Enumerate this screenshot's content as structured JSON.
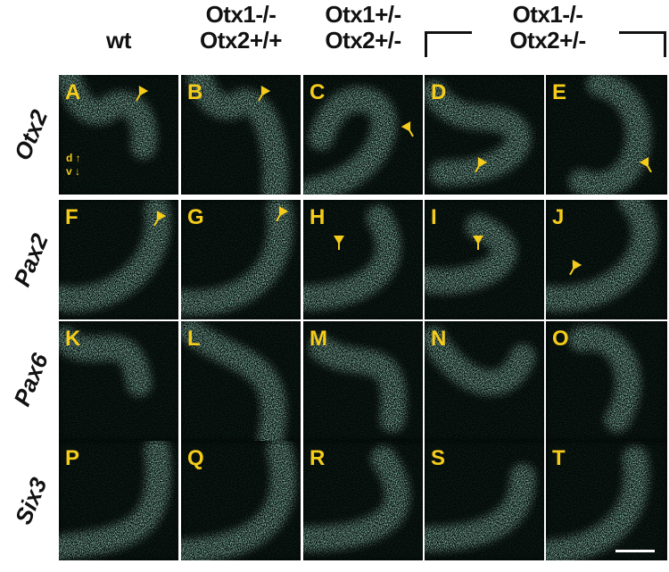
{
  "columns": [
    {
      "line1": "",
      "line2": "wt"
    },
    {
      "line1": "Otx1-/-",
      "line2": "Otx2+/+"
    },
    {
      "line1": "Otx1+/-",
      "line2": "Otx2+/-"
    },
    {
      "line1": "Otx1-/-",
      "line2": "Otx2+/-"
    }
  ],
  "rows": [
    "Otx2",
    "Pax2",
    "Pax6",
    "Six3"
  ],
  "panels": [
    "A",
    "B",
    "C",
    "D",
    "E",
    "F",
    "G",
    "H",
    "I",
    "J",
    "K",
    "L",
    "M",
    "N",
    "O",
    "P",
    "Q",
    "R",
    "S",
    "T"
  ],
  "orientation": {
    "dorsal": "d",
    "ventral": "v"
  },
  "colors": {
    "signal": "#a8e8d4",
    "arrow": "#f5cc1a",
    "label": "#f5cc1a",
    "background": "#020604"
  }
}
